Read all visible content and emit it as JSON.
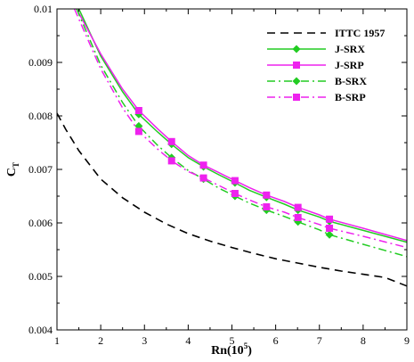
{
  "chart_data": {
    "type": "line",
    "title": "",
    "xlabel": "Rn(10",
    "xlabel_sup": "5",
    "xlabel_end": ")",
    "ylabel": "C",
    "ylabel_sub": "T",
    "xlim": [
      1,
      9
    ],
    "ylim": [
      0.004,
      0.01
    ],
    "xticks": [
      1,
      2,
      3,
      4,
      5,
      6,
      7,
      8,
      9
    ],
    "yticks": [
      0.004,
      0.005,
      0.006,
      0.007,
      0.008,
      0.009,
      0.01
    ],
    "ytick_labels": [
      "0.004",
      "0.005",
      "0.006",
      "0.007",
      "0.008",
      "0.009",
      "0.01"
    ],
    "grid": false,
    "legend_position": "top-right",
    "series": [
      {
        "name": "ITTC 1957",
        "color": "#000000",
        "style": "dashed",
        "marker": "none",
        "x": [
          1.0,
          1.2,
          1.5,
          2.0,
          2.5,
          3.0,
          3.5,
          4.0,
          4.5,
          5.0,
          5.5,
          6.0,
          6.5,
          7.0,
          7.5,
          8.0,
          8.5,
          9.0
        ],
        "y": [
          0.00805,
          0.00775,
          0.00735,
          0.00682,
          0.00647,
          0.0062,
          0.00598,
          0.0058,
          0.00566,
          0.00554,
          0.00543,
          0.00533,
          0.00525,
          0.00517,
          0.0051,
          0.00504,
          0.00498,
          0.00482
        ]
      },
      {
        "name": "J-SRX",
        "color": "#22cc22",
        "style": "solid",
        "marker": "diamond",
        "x": [
          1.5,
          2.0,
          2.5,
          2.87,
          3.3,
          3.62,
          4.0,
          4.35,
          4.7,
          5.07,
          5.4,
          5.79,
          6.2,
          6.51,
          7.0,
          7.23,
          8.0,
          9.0
        ],
        "y": [
          0.01,
          0.00912,
          0.00845,
          0.00803,
          0.0077,
          0.00747,
          0.00722,
          0.00705,
          0.0069,
          0.00675,
          0.00661,
          0.00648,
          0.00635,
          0.00624,
          0.00611,
          0.00603,
          0.00586,
          0.00564
        ],
        "markers_x": [
          2.87,
          3.62,
          4.35,
          5.07,
          5.79,
          6.51,
          7.23
        ],
        "markers_y": [
          0.00803,
          0.00747,
          0.00705,
          0.00675,
          0.00648,
          0.00624,
          0.00603
        ]
      },
      {
        "name": "J-SRP",
        "color": "#ee22ee",
        "style": "solid",
        "marker": "square",
        "x": [
          1.45,
          2.0,
          2.5,
          2.87,
          3.3,
          3.62,
          4.0,
          4.35,
          4.7,
          5.07,
          5.4,
          5.79,
          6.2,
          6.51,
          7.0,
          7.23,
          8.0,
          9.0
        ],
        "y": [
          0.01,
          0.00916,
          0.0085,
          0.0081,
          0.00776,
          0.00752,
          0.00726,
          0.00708,
          0.00694,
          0.00679,
          0.00666,
          0.00652,
          0.0064,
          0.00629,
          0.00615,
          0.00607,
          0.0059,
          0.00567
        ],
        "markers_x": [
          2.87,
          3.62,
          4.35,
          5.07,
          5.79,
          6.51,
          7.23
        ],
        "markers_y": [
          0.0081,
          0.00752,
          0.00708,
          0.00679,
          0.00652,
          0.00629,
          0.00607
        ]
      },
      {
        "name": "B-SRX",
        "color": "#22cc22",
        "style": "dashdot",
        "marker": "diamond",
        "x": [
          1.45,
          2.0,
          2.5,
          2.87,
          3.3,
          3.62,
          4.0,
          4.35,
          4.7,
          5.07,
          5.4,
          5.79,
          6.2,
          6.51,
          7.0,
          7.23,
          8.0,
          9.0
        ],
        "y": [
          0.01,
          0.00895,
          0.00825,
          0.00781,
          0.00745,
          0.00722,
          0.00698,
          0.00682,
          0.00665,
          0.0065,
          0.00637,
          0.00624,
          0.00612,
          0.00602,
          0.00587,
          0.00578,
          0.0056,
          0.00537
        ],
        "markers_x": [
          2.87,
          3.62,
          4.35,
          5.07,
          5.79,
          6.51,
          7.23
        ],
        "markers_y": [
          0.00781,
          0.00722,
          0.00682,
          0.0065,
          0.00624,
          0.00602,
          0.00578
        ]
      },
      {
        "name": "B-SRP",
        "color": "#ee22ee",
        "style": "dashdot",
        "marker": "square",
        "x": [
          1.4,
          2.0,
          2.5,
          2.87,
          3.3,
          3.62,
          4.0,
          4.35,
          4.7,
          5.07,
          5.4,
          5.79,
          6.2,
          6.51,
          7.0,
          7.23,
          8.0,
          9.0
        ],
        "y": [
          0.01,
          0.00888,
          0.00815,
          0.00771,
          0.00738,
          0.00716,
          0.00696,
          0.00684,
          0.0067,
          0.00655,
          0.00643,
          0.0063,
          0.0062,
          0.0061,
          0.00597,
          0.0059,
          0.00575,
          0.00554
        ],
        "markers_x": [
          2.87,
          3.62,
          4.35,
          5.07,
          5.79,
          6.51,
          7.23
        ],
        "markers_y": [
          0.00771,
          0.00716,
          0.00684,
          0.00655,
          0.0063,
          0.0061,
          0.0059
        ]
      }
    ]
  }
}
